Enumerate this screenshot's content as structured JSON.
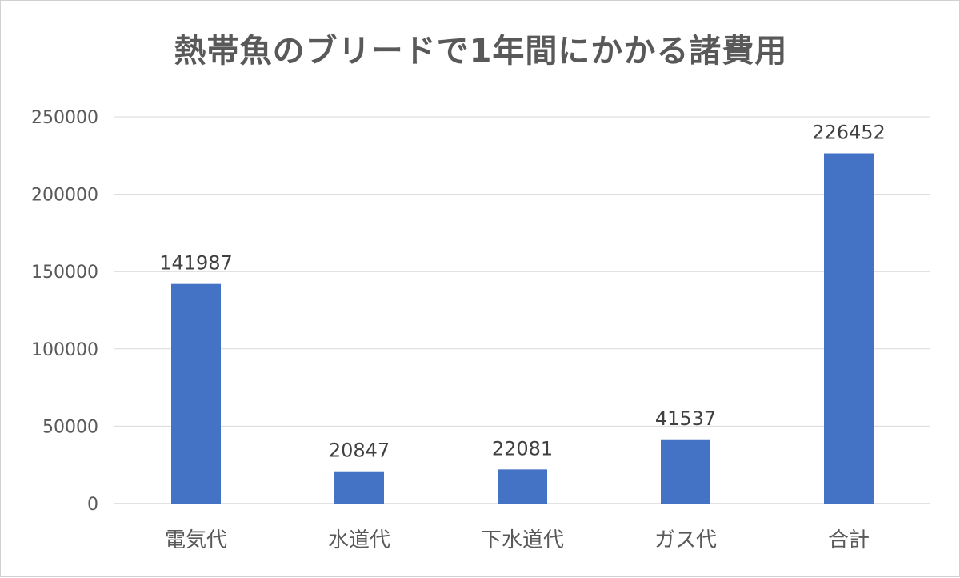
{
  "chart_data": {
    "type": "bar",
    "title": "熱帯魚のブリードで1年間にかかる諸費用",
    "categories": [
      "電気代",
      "水道代",
      "下水道代",
      "ガス代",
      "合計"
    ],
    "values": [
      141987,
      20847,
      22081,
      41537,
      226452
    ],
    "data_labels": [
      "141987",
      "20847",
      "22081",
      "41537",
      "226452"
    ],
    "y_ticks": [
      0,
      50000,
      100000,
      150000,
      200000,
      250000
    ],
    "y_tick_labels": [
      "0",
      "50000",
      "100000",
      "150000",
      "200000",
      "250000"
    ],
    "ylim": [
      0,
      250000
    ],
    "xlabel": "",
    "ylabel": "",
    "grid": true,
    "legend": "none",
    "bar_color": "#4472C4",
    "grid_color": "#d9d9d9"
  }
}
